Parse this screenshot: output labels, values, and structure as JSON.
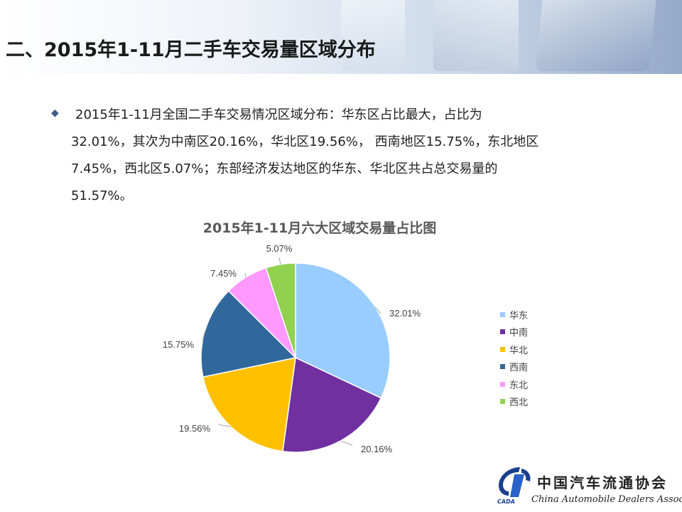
{
  "slide": {
    "title": "二、2015年1-11月二手车交易量区域分布",
    "paragraph_lines": [
      "2015年1-11月全国二手车交易情况区域分布：华东区占比最大，占比为",
      "32.01%，其次为中南区20.16%，华北区19.56%， 西南地区15.75%，东北地区",
      "7.45%，西北区5.07%；东部经济发达地区的华东、华北区共占总交易量的",
      "51.57%。"
    ],
    "bullet_icon": "diamond-bullet-icon"
  },
  "chart_data": {
    "type": "pie",
    "title": "2015年1-11月六大区域交易量占比图",
    "categories": [
      "华东",
      "中南",
      "华北",
      "西南",
      "东北",
      "西北"
    ],
    "values": [
      32.01,
      20.16,
      19.56,
      15.75,
      7.45,
      5.07
    ],
    "labels": [
      "32.01%",
      "20.16%",
      "19.56%",
      "15.75%",
      "7.45%",
      "5.07%"
    ],
    "colors": [
      "#99ccff",
      "#7030a0",
      "#ffc000",
      "#31689b",
      "#ff99ff",
      "#92d050"
    ],
    "legend_position": "right"
  },
  "logo": {
    "chinese_name": "中国汽车流通协会",
    "english_name": "China Automobile Dealers Association",
    "abbreviation": "CADA"
  }
}
